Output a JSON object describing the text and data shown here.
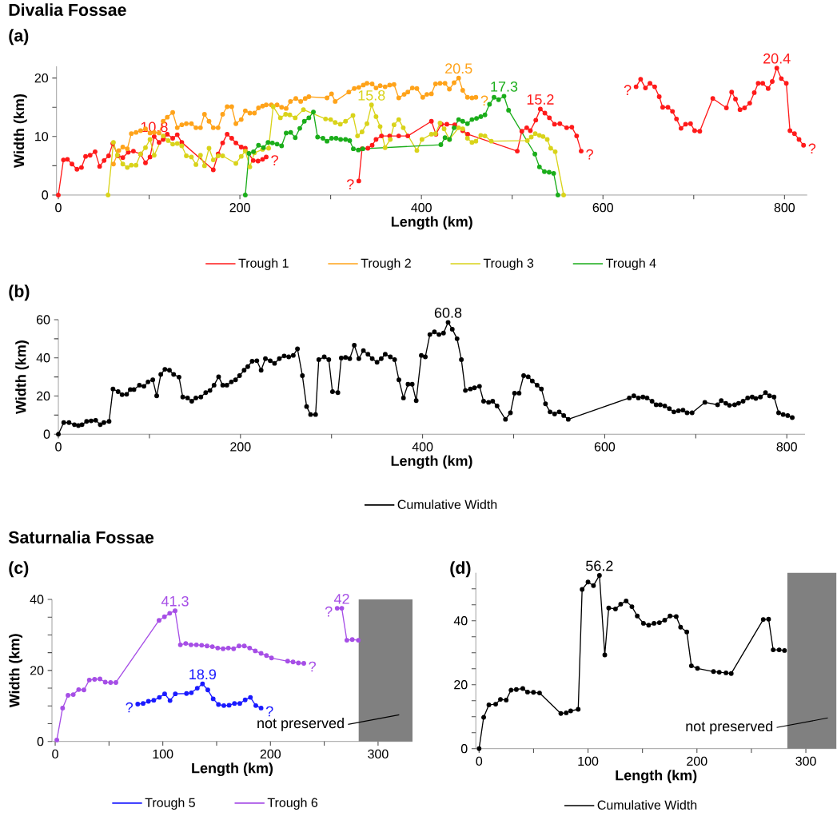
{
  "chart_data": [
    {
      "type": "line",
      "title": "Divalia Fossae",
      "subtitle": "(a)",
      "xlabel": "Length (km)",
      "ylabel": "Width (km)",
      "xlim": [
        -2,
        825
      ],
      "ylim": [
        0,
        22
      ],
      "xticks": [
        0,
        {
          "value": 100,
          "label": null
        },
        200,
        {
          "value": 300,
          "label": null
        },
        400,
        {
          "value": 500,
          "label": null
        },
        600,
        {
          "value": 700,
          "label": null
        },
        800
      ],
      "yticks": [
        0,
        {
          "value": 5,
          "label": null
        },
        10,
        {
          "value": 15,
          "label": null
        },
        20
      ],
      "marker": "circle",
      "line_style": "solid",
      "legend": "bottom",
      "series": [
        {
          "name": "Trough 1",
          "color": "#ff1a1a",
          "x": [
            0,
            5.6,
            10,
            15,
            20.5,
            25.5,
            30,
            35,
            40.5,
            45.5,
            50.4,
            55.4,
            60,
            65.7,
            71,
            77,
            82.7,
            90.6,
            96,
            101,
            105.6,
            111,
            115.5,
            120,
            126,
            131,
            136,
            170.7,
            176,
            181,
            186,
            191,
            195.6,
            201.5,
            206,
            214.7,
            220,
            225,
            229,
            280,
            331,
            334.6,
            341,
            345.7,
            350,
            356,
            365,
            375,
            385,
            411,
            416,
            422,
            428,
            436.7,
            445.5,
            451,
            505.6,
            510.6,
            516,
            520,
            526,
            531,
            536,
            541,
            546.6,
            552.5,
            560,
            565.7,
            571,
            576,
            605,
            636.5,
            641.5,
            646.8,
            651.8,
            657,
            662,
            665.8,
            671.6,
            676.6,
            681,
            686,
            691,
            696.5,
            701,
            706.7,
            721,
            736,
            741.8,
            746,
            751,
            756,
            761.7,
            766.7,
            771,
            776,
            782,
            786.5,
            791.5,
            796.5,
            802,
            806,
            811,
            816,
            821
          ],
          "values": [
            0,
            6.0,
            6.1,
            5.3,
            4.4,
            4.7,
            6.6,
            6.8,
            7.4,
            4.9,
            5.9,
            6.7,
            8.8,
            6.7,
            6.4,
            7.3,
            7.5,
            7.0,
            5.5,
            6.5,
            10.0,
            9.0,
            9.5,
            10.4,
            9.7,
            10.3,
            9.0,
            4.3,
            7.0,
            8.9,
            10.4,
            9.7,
            8.9,
            8.2,
            8.0,
            5.9,
            5.8,
            6.1,
            6.5,
            null,
            2.4,
            7.9,
            8.0,
            8.5,
            9.5,
            10.1,
            10.1,
            10.1,
            10.1,
            12.6,
            10.4,
            12.1,
            12.1,
            12.0,
            11.0,
            10.4,
            7.5,
            10.9,
            11.5,
            11.0,
            12.8,
            14.7,
            14.0,
            13.2,
            12.1,
            12.2,
            11.5,
            11.6,
            10.1,
            7.5,
            null,
            18.5,
            19.8,
            18.3,
            19.1,
            18.5,
            16.8,
            15.0,
            15.0,
            14.3,
            13.0,
            11.4,
            12.1,
            12.2,
            11.0,
            10.9,
            16.5,
            14.9,
            17.6,
            16.4,
            14.6,
            14.9,
            15.7,
            17.5,
            19.1,
            19.1,
            18.2,
            19.4,
            21.7,
            19.9,
            19.1,
            11.0,
            10.5,
            9.5,
            8.5
          ]
        },
        {
          "name": "Trough 2",
          "color": "#ffa31a",
          "x": [
            60.7,
            66.6,
            71,
            76,
            80.4,
            85.6,
            90.6,
            96,
            101,
            105.6,
            111,
            115.5,
            120,
            126,
            131,
            136,
            141,
            146.6,
            151.6,
            156.6,
            161,
            166,
            170.7,
            176,
            181,
            186,
            191,
            195.6,
            201.5,
            206,
            211,
            216,
            220.5,
            225,
            229,
            234.6,
            241,
            246,
            251,
            255.7,
            261.6,
            267,
            272,
            276,
            296,
            301,
            305,
            320,
            326,
            331,
            336,
            340,
            345.7,
            350,
            354.5,
            360,
            365,
            369.8,
            375,
            381,
            385,
            390,
            395,
            401.5,
            406,
            411,
            415.5,
            420.5,
            426,
            430.8,
            436,
            441,
            445.5,
            450.7,
            455.7,
            460
          ],
          "values": [
            5.3,
            7.6,
            8.2,
            7.9,
            10.5,
            10.7,
            11.0,
            11.3,
            10.6,
            10.7,
            10.6,
            12.6,
            13.3,
            14.1,
            11.5,
            12.0,
            12.2,
            12.2,
            11.5,
            11.5,
            13.8,
            12.6,
            11.5,
            11.5,
            13.8,
            15.1,
            15.1,
            12.2,
            12.9,
            14.4,
            14.0,
            14.0,
            14.9,
            15.2,
            15.4,
            15.4,
            15.4,
            15.0,
            14.8,
            16.0,
            16.5,
            16.0,
            16.5,
            16.8,
            16.6,
            17.3,
            16.0,
            17.6,
            18.2,
            18.4,
            18.8,
            19.1,
            19.0,
            18.3,
            18.7,
            18.5,
            18.8,
            18.9,
            16.6,
            17.2,
            17.6,
            18.3,
            18.2,
            16.7,
            17.2,
            17.3,
            19.0,
            19.1,
            19.1,
            18.1,
            19.2,
            20.0,
            17.9,
            16.7,
            16.6,
            16.7
          ]
        },
        {
          "name": "Trough 3",
          "color": "#d9d31a",
          "x": [
            54.8,
            60.7,
            65,
            71,
            76,
            80.4,
            85.6,
            90.6,
            96,
            101,
            105.6,
            115.5,
            121,
            126,
            131,
            136,
            141,
            146.6,
            151.6,
            156.6,
            161,
            166,
            170.7,
            176,
            181,
            195.6,
            201.5,
            206,
            211,
            216,
            225,
            231.7,
            236.7,
            244.6,
            250.4,
            255,
            261,
            270,
            294.4,
            300,
            305,
            310.6,
            316.4,
            324.6,
            329.6,
            334.6,
            340,
            345,
            350,
            354.5,
            360,
            365.7,
            369.8,
            375,
            380,
            395,
            400.6,
            411,
            415.5,
            420.5,
            425,
            430.8,
            441,
            445.5,
            450.7,
            455.7,
            460,
            465.4,
            470,
            477,
            516.7,
            521,
            525.4,
            530,
            534,
            538.6,
            542.4,
            547.4,
            556.7
          ],
          "values": [
            0,
            9.0,
            6.8,
            5.3,
            4.7,
            5.1,
            5.1,
            7.0,
            8.1,
            9.5,
            6.8,
            10.1,
            9.3,
            8.7,
            8.8,
            8.4,
            6.7,
            6.5,
            5.2,
            6.8,
            5.0,
            8.0,
            6.0,
            6.7,
            6.7,
            5.4,
            6.6,
            7.5,
            4.8,
            7.2,
            7.8,
            8.0,
            15.1,
            13.2,
            13.8,
            13.7,
            13.2,
            14.6,
            13.0,
            12.9,
            12.4,
            12.1,
            12.6,
            13.6,
            10.1,
            10.8,
            12.2,
            15.4,
            13.4,
            11.7,
            8.1,
            9.5,
            12.0,
            12.9,
            11.5,
            7.6,
            9.5,
            10.4,
            10.5,
            12.3,
            11.3,
            9.5,
            11.5,
            11.3,
            9.7,
            9.0,
            9.2,
            10.2,
            10.1,
            9.2,
            9.3,
            9.9,
            10.5,
            10.2,
            10.0,
            9.5,
            8.0,
            7.4,
            0
          ]
        },
        {
          "name": "Trough 4",
          "color": "#1aad1a",
          "x": [
            206,
            210,
            215,
            220.5,
            226,
            231,
            235.8,
            241,
            246,
            251,
            256,
            261,
            266,
            271,
            276,
            281,
            285.6,
            291.5,
            296,
            301,
            306,
            311,
            316.4,
            321,
            325,
            330.5,
            335.5,
            421.4,
            426,
            431,
            436,
            441,
            445.5,
            450.7,
            455.7,
            460.7,
            465.4,
            470,
            475,
            480,
            485,
            491,
            496,
            525,
            530,
            535.5,
            540.7,
            545.7,
            550.4
          ],
          "values": [
            0,
            7.1,
            7.4,
            8.5,
            8.1,
            9.0,
            8.9,
            8.7,
            8.4,
            10.6,
            10.7,
            9.8,
            11.4,
            12.6,
            13.2,
            14.2,
            9.9,
            9.7,
            9.2,
            9.7,
            9.7,
            9.5,
            9.5,
            9.3,
            7.9,
            7.7,
            7.9,
            8.6,
            9.8,
            9.5,
            11.5,
            12.9,
            12.6,
            12.2,
            12.9,
            13.1,
            13.4,
            13.7,
            15.5,
            16.7,
            16.3,
            16.9,
            14.5,
            7.0,
            4.8,
            4.0,
            3.9,
            3.7,
            0
          ]
        }
      ],
      "annotations": [
        {
          "text": "10.8",
          "x": 105.6,
          "y": 10.0
        },
        {
          "text": "15.8",
          "x": 345,
          "y": 15.4
        },
        {
          "text": "20.5",
          "x": 441,
          "y": 20.0
        },
        {
          "text": "17.3",
          "x": 491,
          "y": 16.9
        },
        {
          "text": "15.2",
          "x": 531,
          "y": 14.7
        },
        {
          "text": "20.4",
          "x": 791.5,
          "y": 21.7
        },
        {
          "text": "?",
          "x": 229,
          "y": 6.5
        },
        {
          "text": "?",
          "x": 331,
          "y": 2.4
        },
        {
          "text": "?",
          "x": 460,
          "y": 16.7
        },
        {
          "text": "?",
          "x": 576,
          "y": 7.5
        },
        {
          "text": "?",
          "x": 636.5,
          "y": 18.5
        },
        {
          "text": "?",
          "x": 821,
          "y": 8.5
        }
      ]
    },
    {
      "type": "line",
      "title": "(b)",
      "xlabel": "Length (km)",
      "ylabel": "Width (km)",
      "xlim": [
        0,
        820
      ],
      "ylim": [
        0,
        60
      ],
      "xticks": [
        0,
        {
          "value": 100,
          "label": null
        },
        200,
        {
          "value": 300,
          "label": null
        },
        400,
        {
          "value": 500,
          "label": null
        },
        600,
        {
          "value": 700,
          "label": null
        },
        800
      ],
      "yticks": [
        0,
        {
          "value": 10,
          "label": null
        },
        20,
        {
          "value": 30,
          "label": null
        },
        40,
        {
          "value": 50,
          "label": null
        },
        60
      ],
      "marker": "circle",
      "line_style": "solid",
      "legend": "bottom",
      "series": [
        {
          "name": "Cumulative Width",
          "color": "#000000",
          "x": [
            0,
            5.9,
            11.7,
            17.6,
            22,
            26,
            31,
            36,
            41,
            46,
            50,
            55.7,
            60,
            65.6,
            70,
            75,
            79,
            83,
            89,
            94,
            98.5,
            103.7,
            108,
            112.5,
            117,
            122,
            126.6,
            132.5,
            136.6,
            141.9,
            146.5,
            151,
            156.5,
            161.8,
            166.5,
            171,
            176,
            180.5,
            185,
            190,
            194.6,
            199,
            204,
            208,
            212.8,
            218,
            222.7,
            227.4,
            232.7,
            237.4,
            242.7,
            248,
            253,
            258,
            262.6,
            268,
            272.6,
            277,
            282.5,
            286,
            292,
            297,
            301,
            307,
            310.7,
            315.4,
            320,
            325,
            330,
            335,
            340,
            344.7,
            350,
            354.6,
            359,
            364.6,
            369.3,
            374,
            379,
            384,
            388.6,
            393,
            398.6,
            403,
            408,
            413,
            418,
            423,
            428,
            432.6,
            437.9,
            442.6,
            447,
            452.5,
            457,
            462.5,
            467,
            472.5,
            477,
            481.8,
            491,
            496.5,
            501,
            506,
            511,
            516,
            520.5,
            525.8,
            530.5,
            535,
            540,
            545,
            550,
            555,
            560,
            627,
            632,
            637,
            642,
            646.5,
            652,
            656.5,
            661,
            666,
            671,
            676,
            681,
            686,
            690.5,
            696,
            710,
            724,
            728,
            733,
            737,
            742.7,
            747,
            752,
            757,
            762,
            766,
            771,
            776.6,
            781,
            786,
            791,
            796,
            801,
            806
          ],
          "values": [
            0,
            6.1,
            6.1,
            5.0,
            4.5,
            5.0,
            6.7,
            7.0,
            7.3,
            5.0,
            6.1,
            6.7,
            23.7,
            22.3,
            20.7,
            20.9,
            23.4,
            23.4,
            25.7,
            25.1,
            27.4,
            28.5,
            20.1,
            31.3,
            34.0,
            33.5,
            31.3,
            29.9,
            19.5,
            19.0,
            17.3,
            19.0,
            19.5,
            21.8,
            22.9,
            25.7,
            30.1,
            25.7,
            25.7,
            27.4,
            28.5,
            30.7,
            33.5,
            35.4,
            38.2,
            38.5,
            33.5,
            39.6,
            38.5,
            37.1,
            39.6,
            41.0,
            40.5,
            41.3,
            44.7,
            30.7,
            14.5,
            10.3,
            10.3,
            39.1,
            40.5,
            39.1,
            22.3,
            21.8,
            39.9,
            40.2,
            39.6,
            46.6,
            39.6,
            43.8,
            41.9,
            39.6,
            37.7,
            39.6,
            41.9,
            40.5,
            39.1,
            28.5,
            19.0,
            26.2,
            26.2,
            17.6,
            41.3,
            40.5,
            52.2,
            53.6,
            52.2,
            53.0,
            58.6,
            55.0,
            50.0,
            39.1,
            22.9,
            23.7,
            24.3,
            25.1,
            17.3,
            16.7,
            17.3,
            14.8,
            7.8,
            11.2,
            21.5,
            21.5,
            30.7,
            30.1,
            27.9,
            25.7,
            23.7,
            15.9,
            11.7,
            10.6,
            11.7,
            9.8,
            7.8,
            19.0,
            20.1,
            19.0,
            19.5,
            19.0,
            17.3,
            15.4,
            15.4,
            14.8,
            13.4,
            11.7,
            12.3,
            12.6,
            11.2,
            11.2,
            16.7,
            15.4,
            17.6,
            16.2,
            15.1,
            15.4,
            16.2,
            17.3,
            19.0,
            19.5,
            18.7,
            19.5,
            21.8,
            20.1,
            19.5,
            11.2,
            10.3,
            9.8,
            8.7
          ]
        }
      ],
      "annotations": [
        {
          "text": "60.8",
          "x": 428,
          "y": 58.6
        }
      ]
    },
    {
      "type": "line",
      "title": "Saturnalia Fossae",
      "subtitle": "(c)",
      "xlabel": "Length (km)",
      "ylabel": "Width (km)",
      "xlim": [
        -3,
        332
      ],
      "ylim": [
        0,
        40
      ],
      "xticks": [
        0,
        {
          "value": 50,
          "label": null
        },
        100,
        {
          "value": 150,
          "label": null
        },
        200,
        {
          "value": 250,
          "label": null
        },
        300
      ],
      "yticks": [
        0,
        {
          "value": 5,
          "label": null
        },
        {
          "value": 10,
          "label": null
        },
        {
          "value": 15,
          "label": null
        },
        20,
        {
          "value": 25,
          "label": null
        },
        {
          "value": 30,
          "label": null
        },
        {
          "value": 35,
          "label": null
        },
        40
      ],
      "marker": "circle",
      "line_style": "solid",
      "legend": "bottom",
      "series": [
        {
          "name": "Trough 5",
          "color": "#1a1aff",
          "x": [
            76.7,
            81.7,
            86.6,
            91.6,
            96.8,
            101.7,
            106.7,
            111.6,
            122,
            126.5,
            132,
            136.9,
            141.8,
            146.8,
            151.7,
            156.7,
            161.6,
            166.6,
            171.5,
            176.5,
            181.4,
            186.4,
            191.3
          ],
          "values": [
            10.5,
            10.7,
            11.3,
            11.6,
            12.4,
            13.4,
            11.5,
            13.4,
            13.5,
            13.7,
            15.0,
            16.2,
            14.5,
            12.0,
            10.4,
            10.1,
            10.2,
            10.7,
            10.7,
            11.7,
            12.4,
            10.1,
            9.4
          ]
        },
        {
          "name": "Trough 6",
          "color": "#a64ee6",
          "x": [
            1.5,
            6.9,
            11.9,
            16.8,
            21.8,
            26.7,
            31.7,
            36.6,
            41.6,
            46.5,
            51.5,
            56.4,
            96.5,
            101.5,
            106.4,
            111.4,
            116.3,
            121.3,
            126.2,
            131.2,
            136.1,
            141.1,
            146,
            151,
            156,
            160.9,
            165.8,
            170.8,
            175.7,
            180.7,
            185.9,
            191.3,
            196.3,
            201,
            216,
            221,
            226,
            231,
            246,
            262,
            266.3,
            271,
            276,
            281.7
          ],
          "values": [
            0.4,
            9.4,
            13.0,
            13.2,
            14.6,
            14.5,
            17.3,
            17.5,
            17.6,
            16.7,
            16.6,
            16.6,
            34.1,
            35.1,
            36.1,
            36.8,
            27.2,
            27.6,
            27.2,
            27.2,
            27.1,
            26.9,
            26.7,
            26.3,
            26.1,
            26.3,
            26.1,
            26.9,
            26.9,
            26.3,
            25.5,
            24.8,
            24.2,
            23.5,
            22.6,
            22.4,
            22.1,
            22.0,
            null,
            37.5,
            37.5,
            28.5,
            28.7,
            28.5
          ]
        }
      ],
      "bands": [
        {
          "axis": "x",
          "from": 282,
          "to": 332,
          "label": "not preserved",
          "color": "#808080"
        }
      ],
      "annotations": [
        {
          "text": "41.3",
          "x": 111.4,
          "y": 36.8
        },
        {
          "text": "18.9",
          "x": 136.9,
          "y": 16.2
        },
        {
          "text": "42",
          "x": 266.3,
          "y": 37.5
        },
        {
          "text": "?",
          "x": 76.7,
          "y": 10.5
        },
        {
          "text": "?",
          "x": 191.3,
          "y": 9.4
        },
        {
          "text": "?",
          "x": 231,
          "y": 22.0
        },
        {
          "text": "?",
          "x": 262,
          "y": 37.5
        }
      ]
    },
    {
      "type": "line",
      "title": "(d)",
      "xlabel": "Length (km)",
      "xlim": [
        -3,
        328
      ],
      "ylim": [
        0,
        55
      ],
      "xticks": [
        0,
        {
          "value": 50,
          "label": null
        },
        100,
        {
          "value": 150,
          "label": null
        },
        200,
        {
          "value": 250,
          "label": null
        },
        300
      ],
      "yticks": [
        0,
        {
          "value": 5,
          "label": null
        },
        {
          "value": 10,
          "label": null
        },
        {
          "value": 15,
          "label": null
        },
        20,
        {
          "value": 25,
          "label": null
        },
        {
          "value": 30,
          "label": null
        },
        {
          "value": 35,
          "label": null
        },
        40,
        {
          "value": 45,
          "label": null
        },
        {
          "value": 50,
          "label": null
        }
      ],
      "marker": "circle",
      "line_style": "solid",
      "legend": "bottom",
      "series": [
        {
          "name": "Cumulative Width",
          "color": "#000000",
          "x": [
            0,
            4.2,
            9,
            15.2,
            19.6,
            24.9,
            29.3,
            34.2,
            40.1,
            44.5,
            49.9,
            55.5,
            75,
            80,
            84.1,
            91,
            94.6,
            100,
            105,
            110.5,
            115.4,
            119,
            125.2,
            130,
            135,
            140.3,
            145.2,
            150.9,
            155.7,
            160.6,
            165.5,
            170.4,
            175.3,
            181,
            185,
            190.7,
            194.9,
            200.5,
            215.2,
            220.5,
            226.7,
            231.5,
            260.9,
            265.8,
            270,
            275.5,
            280.4
          ],
          "values": [
            0,
            9.8,
            13.7,
            13.9,
            15.4,
            15.2,
            18.3,
            18.5,
            18.8,
            17.7,
            17.6,
            17.4,
            11.0,
            11.2,
            11.8,
            12.3,
            49.8,
            52.1,
            51.0,
            54.2,
            29.3,
            44.0,
            43.7,
            45.2,
            46.2,
            44.4,
            41.5,
            39.2,
            38.6,
            39.2,
            39.4,
            40.2,
            41.5,
            41.3,
            38.0,
            36.5,
            25.9,
            25.1,
            24.1,
            23.9,
            23.7,
            23.5,
            40.4,
            40.5,
            30.9,
            30.9,
            30.7
          ]
        }
      ],
      "bands": [
        {
          "axis": "x",
          "from": 283,
          "to": 328,
          "label": "not preserved",
          "color": "#808080"
        }
      ],
      "annotations": [
        {
          "text": "56.2",
          "x": 110.5,
          "y": 54.2
        }
      ]
    }
  ]
}
